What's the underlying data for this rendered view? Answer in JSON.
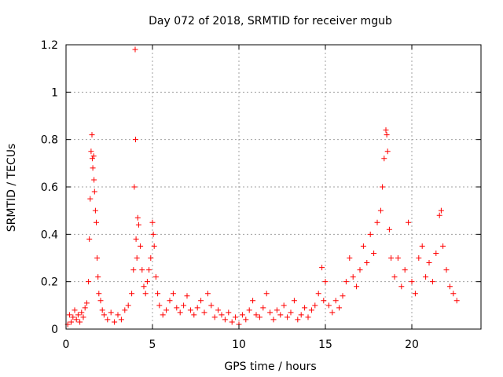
{
  "chart_data": {
    "type": "scatter",
    "title": "Day 072 of 2018, SRMTID for receiver mgub",
    "xlabel": "GPS time / hours",
    "ylabel": "SRMTID / TECUs",
    "xlim": [
      0,
      24
    ],
    "ylim": [
      0,
      1.2
    ],
    "xticks": [
      0,
      5,
      10,
      15,
      20
    ],
    "xtick_labels": [
      "0",
      "5",
      "10",
      "15",
      "20"
    ],
    "yticks": [
      0,
      0.2,
      0.4,
      0.6,
      0.8,
      1,
      1.2
    ],
    "ytick_labels": [
      "0",
      "0.2",
      "0.4",
      "0.6",
      "0.8",
      "1",
      "1.2"
    ],
    "grid": true,
    "marker": "+",
    "series": [
      {
        "name": "SRMTID",
        "color": "#ff0000",
        "points": [
          [
            0.1,
            0.02
          ],
          [
            0.2,
            0.06
          ],
          [
            0.3,
            0.03
          ],
          [
            0.4,
            0.05
          ],
          [
            0.5,
            0.08
          ],
          [
            0.6,
            0.04
          ],
          [
            0.7,
            0.06
          ],
          [
            0.8,
            0.03
          ],
          [
            0.9,
            0.07
          ],
          [
            1.0,
            0.05
          ],
          [
            1.1,
            0.09
          ],
          [
            1.2,
            0.11
          ],
          [
            1.3,
            0.2
          ],
          [
            1.35,
            0.38
          ],
          [
            1.4,
            0.55
          ],
          [
            1.45,
            0.75
          ],
          [
            1.5,
            0.82
          ],
          [
            1.52,
            0.72
          ],
          [
            1.55,
            0.68
          ],
          [
            1.6,
            0.73
          ],
          [
            1.62,
            0.63
          ],
          [
            1.65,
            0.58
          ],
          [
            1.7,
            0.5
          ],
          [
            1.75,
            0.45
          ],
          [
            1.8,
            0.3
          ],
          [
            1.85,
            0.22
          ],
          [
            1.9,
            0.15
          ],
          [
            2.0,
            0.12
          ],
          [
            2.1,
            0.08
          ],
          [
            2.2,
            0.06
          ],
          [
            2.4,
            0.04
          ],
          [
            2.6,
            0.07
          ],
          [
            2.8,
            0.03
          ],
          [
            3.0,
            0.06
          ],
          [
            3.2,
            0.04
          ],
          [
            3.4,
            0.08
          ],
          [
            3.6,
            0.1
          ],
          [
            3.8,
            0.15
          ],
          [
            3.9,
            0.25
          ],
          [
            3.95,
            0.6
          ],
          [
            4.0,
            1.18
          ],
          [
            4.02,
            0.8
          ],
          [
            4.05,
            0.38
          ],
          [
            4.1,
            0.3
          ],
          [
            4.15,
            0.47
          ],
          [
            4.2,
            0.44
          ],
          [
            4.3,
            0.35
          ],
          [
            4.4,
            0.25
          ],
          [
            4.5,
            0.18
          ],
          [
            4.6,
            0.15
          ],
          [
            4.7,
            0.2
          ],
          [
            4.8,
            0.25
          ],
          [
            4.9,
            0.3
          ],
          [
            5.0,
            0.45
          ],
          [
            5.05,
            0.4
          ],
          [
            5.1,
            0.35
          ],
          [
            5.2,
            0.22
          ],
          [
            5.3,
            0.15
          ],
          [
            5.4,
            0.1
          ],
          [
            5.6,
            0.06
          ],
          [
            5.8,
            0.08
          ],
          [
            6.0,
            0.12
          ],
          [
            6.2,
            0.15
          ],
          [
            6.4,
            0.09
          ],
          [
            6.6,
            0.07
          ],
          [
            6.8,
            0.1
          ],
          [
            7.0,
            0.14
          ],
          [
            7.2,
            0.08
          ],
          [
            7.4,
            0.06
          ],
          [
            7.6,
            0.09
          ],
          [
            7.8,
            0.12
          ],
          [
            8.0,
            0.07
          ],
          [
            8.2,
            0.15
          ],
          [
            8.4,
            0.1
          ],
          [
            8.6,
            0.05
          ],
          [
            8.8,
            0.08
          ],
          [
            9.0,
            0.06
          ],
          [
            9.2,
            0.04
          ],
          [
            9.4,
            0.07
          ],
          [
            9.6,
            0.03
          ],
          [
            9.8,
            0.05
          ],
          [
            10.0,
            0.02
          ],
          [
            10.2,
            0.06
          ],
          [
            10.4,
            0.04
          ],
          [
            10.6,
            0.08
          ],
          [
            10.8,
            0.12
          ],
          [
            11.0,
            0.06
          ],
          [
            11.2,
            0.05
          ],
          [
            11.4,
            0.09
          ],
          [
            11.6,
            0.15
          ],
          [
            11.8,
            0.07
          ],
          [
            12.0,
            0.04
          ],
          [
            12.2,
            0.08
          ],
          [
            12.4,
            0.06
          ],
          [
            12.6,
            0.1
          ],
          [
            12.8,
            0.05
          ],
          [
            13.0,
            0.07
          ],
          [
            13.2,
            0.12
          ],
          [
            13.4,
            0.04
          ],
          [
            13.6,
            0.06
          ],
          [
            13.8,
            0.09
          ],
          [
            14.0,
            0.05
          ],
          [
            14.2,
            0.08
          ],
          [
            14.4,
            0.1
          ],
          [
            14.6,
            0.15
          ],
          [
            14.8,
            0.26
          ],
          [
            14.9,
            0.12
          ],
          [
            15.0,
            0.2
          ],
          [
            15.2,
            0.1
          ],
          [
            15.4,
            0.07
          ],
          [
            15.6,
            0.12
          ],
          [
            15.8,
            0.09
          ],
          [
            16.0,
            0.14
          ],
          [
            16.2,
            0.2
          ],
          [
            16.4,
            0.3
          ],
          [
            16.6,
            0.22
          ],
          [
            16.8,
            0.18
          ],
          [
            17.0,
            0.25
          ],
          [
            17.2,
            0.35
          ],
          [
            17.4,
            0.28
          ],
          [
            17.6,
            0.4
          ],
          [
            17.8,
            0.32
          ],
          [
            18.0,
            0.45
          ],
          [
            18.2,
            0.5
          ],
          [
            18.3,
            0.6
          ],
          [
            18.4,
            0.72
          ],
          [
            18.5,
            0.84
          ],
          [
            18.55,
            0.82
          ],
          [
            18.6,
            0.75
          ],
          [
            18.7,
            0.42
          ],
          [
            18.8,
            0.3
          ],
          [
            19.0,
            0.22
          ],
          [
            19.2,
            0.3
          ],
          [
            19.4,
            0.18
          ],
          [
            19.6,
            0.25
          ],
          [
            19.8,
            0.45
          ],
          [
            20.0,
            0.2
          ],
          [
            20.2,
            0.15
          ],
          [
            20.4,
            0.3
          ],
          [
            20.6,
            0.35
          ],
          [
            20.8,
            0.22
          ],
          [
            21.0,
            0.28
          ],
          [
            21.2,
            0.2
          ],
          [
            21.4,
            0.32
          ],
          [
            21.6,
            0.48
          ],
          [
            21.7,
            0.5
          ],
          [
            21.8,
            0.35
          ],
          [
            22.0,
            0.25
          ],
          [
            22.2,
            0.18
          ],
          [
            22.4,
            0.15
          ],
          [
            22.6,
            0.12
          ]
        ]
      }
    ]
  }
}
